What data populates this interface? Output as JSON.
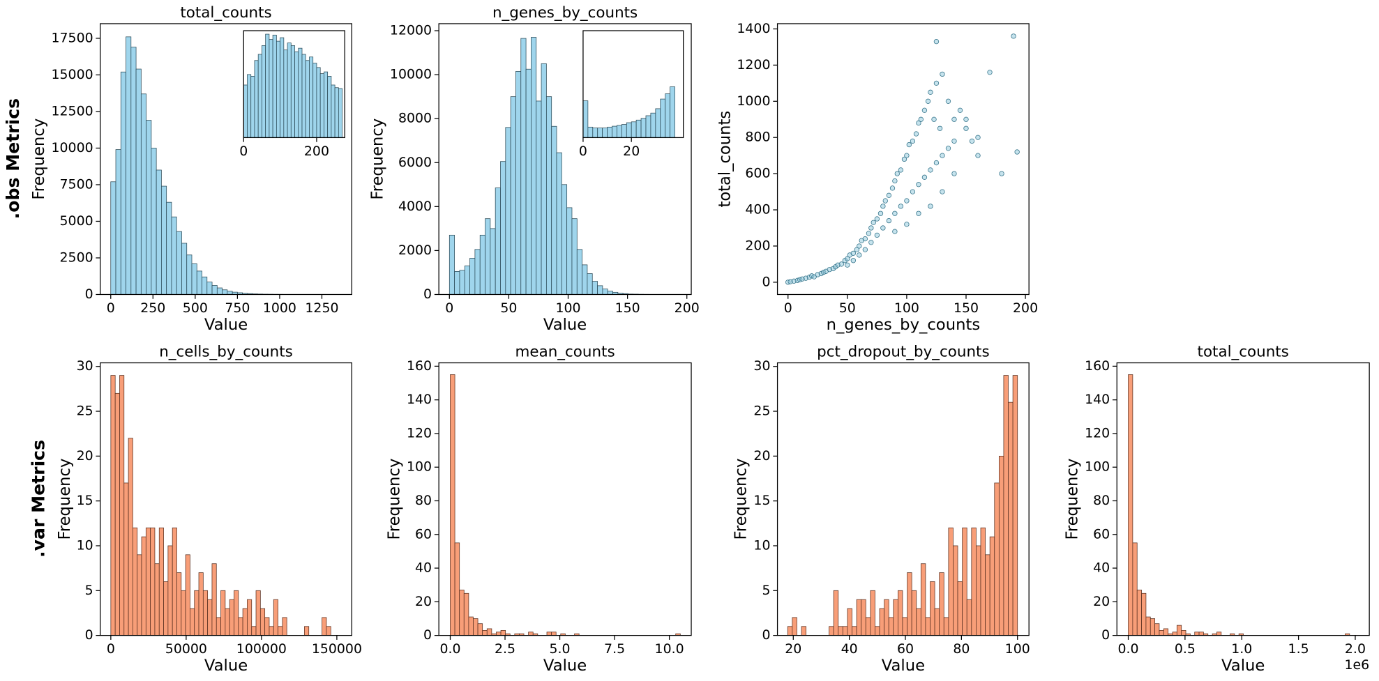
{
  "row_labels": [
    ".obs Metrics",
    ".var Metrics"
  ],
  "chart_data": [
    {
      "type": "histogram",
      "title": "total_counts",
      "xlabel": "Value",
      "ylabel": "Frequency",
      "color": "#9fd5ec",
      "edgecolor": "#2b4a57",
      "bins": [
        0,
        30,
        60,
        90,
        120,
        150,
        180,
        210,
        240,
        270,
        300,
        330,
        360,
        390,
        420,
        450,
        480,
        510,
        540,
        570,
        600,
        630,
        660,
        690,
        720,
        750,
        780,
        810,
        840,
        870,
        900,
        930,
        960,
        990,
        1020,
        1050,
        1080,
        1110,
        1140,
        1170,
        1200,
        1230,
        1260,
        1290,
        1320,
        1350,
        1380
      ],
      "values": [
        7700,
        9900,
        15200,
        17600,
        16900,
        15400,
        13700,
        11900,
        10000,
        8500,
        7400,
        6300,
        5300,
        4300,
        3500,
        2700,
        2100,
        1600,
        1200,
        850,
        620,
        450,
        320,
        220,
        160,
        120,
        80,
        60,
        40,
        30,
        20,
        15,
        10,
        8,
        5,
        4,
        3,
        2,
        2,
        1,
        1,
        1,
        0,
        0,
        0,
        1
      ],
      "xlim": [
        -62,
        1427
      ],
      "ylim": [
        0,
        18500
      ],
      "xticks": [
        0,
        250,
        500,
        750,
        1000,
        1250
      ],
      "yticks": [
        0,
        2500,
        5000,
        7500,
        10000,
        12500,
        15000,
        17500
      ],
      "inset": {
        "type": "histogram",
        "bins": [
          0,
          10,
          20,
          30,
          40,
          50,
          60,
          70,
          80,
          90,
          100,
          110,
          120,
          130,
          140,
          150,
          160,
          170,
          180,
          190,
          200,
          210,
          220,
          230,
          240,
          250,
          260,
          270
        ],
        "values": [
          3000,
          3600,
          3500,
          4400,
          4750,
          5250,
          5900,
          5600,
          5850,
          5500,
          5700,
          5000,
          5400,
          5250,
          4900,
          5100,
          4750,
          4400,
          4600,
          4250,
          4000,
          3650,
          3750,
          3500,
          3000,
          2850,
          2800
        ],
        "xlim": [
          0,
          277
        ],
        "ylim": [
          0,
          6100
        ],
        "xticks": [
          0,
          200
        ]
      }
    },
    {
      "type": "histogram",
      "title": "n_genes_by_counts",
      "xlabel": "Value",
      "ylabel": "Frequency",
      "color": "#9fd5ec",
      "edgecolor": "#2b4a57",
      "bins": [
        0,
        4.3,
        8.6,
        12.9,
        17.2,
        21.5,
        25.8,
        30.1,
        34.4,
        38.7,
        43,
        47.3,
        51.6,
        55.9,
        60.2,
        64.5,
        68.8,
        73.1,
        77.4,
        81.7,
        86,
        90.3,
        94.6,
        98.9,
        103.2,
        107.5,
        111.8,
        116.1,
        120.4,
        124.7,
        129,
        133.3,
        137.6,
        141.9,
        146.2,
        150.5,
        154.8,
        159.1,
        163.4,
        167.7,
        172,
        176.3,
        180.6,
        184.9,
        189.2,
        193.5
      ],
      "values": [
        2700,
        1050,
        1100,
        1300,
        1650,
        2050,
        2700,
        3450,
        3000,
        4850,
        6050,
        7600,
        9000,
        10150,
        11650,
        10250,
        11700,
        8800,
        10500,
        9000,
        7650,
        6450,
        5000,
        3950,
        3450,
        2050,
        1350,
        950,
        600,
        400,
        250,
        150,
        100,
        60,
        40,
        20,
        15,
        8,
        5,
        3,
        2,
        1,
        0,
        1,
        1
      ],
      "xlim": [
        -8.9,
        203.7
      ],
      "ylim": [
        0,
        12320
      ],
      "xticks": [
        0,
        50,
        100,
        150,
        200
      ],
      "yticks": [
        0,
        2000,
        4000,
        6000,
        8000,
        10000,
        12000
      ],
      "inset": {
        "type": "histogram",
        "bins": [
          0,
          2,
          4,
          6,
          8,
          10,
          12,
          14,
          16,
          18,
          20,
          22,
          24,
          26,
          28,
          30,
          32,
          34,
          36,
          38
        ],
        "values": [
          1050,
          300,
          275,
          275,
          275,
          300,
          325,
          350,
          375,
          425,
          450,
          500,
          550,
          625,
          700,
          825,
          1100,
          1250,
          1450
        ],
        "xlim": [
          0,
          41.5
        ],
        "ylim": [
          0,
          3050
        ],
        "xticks": [
          0,
          20
        ]
      }
    },
    {
      "type": "scatter",
      "xlabel": "n_genes_by_counts",
      "ylabel": "total_counts",
      "color": "#8ec7db",
      "edgecolor": "#2f6f86",
      "x": [
        0,
        2,
        5,
        8,
        10,
        12,
        15,
        18,
        20,
        22,
        25,
        28,
        30,
        32,
        35,
        38,
        40,
        42,
        45,
        48,
        50,
        50,
        52,
        55,
        55,
        58,
        60,
        60,
        62,
        65,
        65,
        68,
        70,
        70,
        72,
        75,
        75,
        78,
        80,
        80,
        82,
        85,
        85,
        88,
        90,
        90,
        92,
        95,
        95,
        98,
        100,
        100,
        102,
        105,
        105,
        108,
        110,
        110,
        112,
        115,
        115,
        118,
        120,
        120,
        123,
        125,
        125,
        128,
        130,
        130,
        135,
        135,
        140,
        140,
        145,
        150,
        150,
        155,
        160,
        125,
        170,
        190,
        193,
        180,
        160,
        140,
        130,
        120,
        110,
        100,
        90
      ],
      "values": [
        0,
        3,
        6,
        10,
        14,
        18,
        22,
        28,
        35,
        30,
        42,
        48,
        55,
        60,
        70,
        75,
        85,
        95,
        100,
        120,
        130,
        95,
        150,
        160,
        120,
        180,
        200,
        150,
        230,
        240,
        180,
        270,
        300,
        220,
        330,
        350,
        260,
        380,
        420,
        300,
        450,
        480,
        340,
        520,
        560,
        380,
        600,
        620,
        420,
        680,
        700,
        450,
        760,
        780,
        500,
        820,
        880,
        540,
        900,
        950,
        580,
        1000,
        1050,
        620,
        900,
        1100,
        660,
        850,
        1150,
        700,
        1000,
        740,
        900,
        780,
        950,
        850,
        900,
        780,
        800,
        1330,
        1160,
        1360,
        720,
        600,
        700,
        600,
        500,
        420,
        380,
        320,
        280
      ],
      "xlim": [
        -8.9,
        203
      ],
      "ylim": [
        -67.8,
        1429
      ],
      "xticks": [
        0,
        50,
        100,
        150,
        200
      ],
      "yticks": [
        0,
        200,
        400,
        600,
        800,
        1000,
        1200,
        1400
      ]
    },
    {
      "type": "histogram",
      "title": "n_cells_by_counts",
      "xlabel": "Value",
      "ylabel": "Frequency",
      "color": "#f89e78",
      "edgecolor": "#5a3020",
      "bins": [
        0,
        2920,
        5840,
        8760,
        11680,
        14600,
        17520,
        20440,
        23360,
        26280,
        29200,
        32120,
        35040,
        37960,
        40880,
        43800,
        46720,
        49640,
        52560,
        55480,
        58400,
        61320,
        64240,
        67160,
        70080,
        73000,
        75920,
        78840,
        81760,
        84680,
        87600,
        90520,
        93440,
        96360,
        99280,
        102200,
        105120,
        108040,
        110960,
        113880,
        116800,
        119720,
        122640,
        125560,
        128480,
        131400,
        134320,
        137240,
        140160,
        143080,
        146000
      ],
      "values": [
        29,
        27,
        29,
        17,
        22,
        12,
        9,
        11,
        12,
        12,
        8,
        12,
        6,
        10,
        12,
        7,
        5,
        9,
        3,
        5,
        7,
        5,
        4,
        8,
        2,
        5,
        3,
        4,
        5,
        2,
        3,
        4,
        1,
        5,
        3,
        2,
        1,
        4,
        1,
        2,
        0,
        0,
        0,
        0,
        1,
        0,
        0,
        0,
        2,
        1
      ],
      "xlim": [
        -7004,
        159920
      ],
      "ylim": [
        0,
        30.4
      ],
      "xticks": [
        0,
        50000,
        100000,
        150000
      ],
      "yticks": [
        0,
        5,
        10,
        15,
        20,
        25,
        30
      ]
    },
    {
      "type": "histogram",
      "title": "mean_counts",
      "xlabel": "Value",
      "ylabel": "Frequency",
      "color": "#f89e78",
      "edgecolor": "#5a3020",
      "bins": [
        0,
        0.21,
        0.42,
        0.63,
        0.84,
        1.05,
        1.26,
        1.47,
        1.68,
        1.89,
        2.1,
        2.31,
        2.52,
        2.73,
        2.94,
        3.15,
        3.36,
        3.57,
        3.78,
        3.99,
        4.2,
        4.41,
        4.62,
        4.83,
        5.04,
        5.25,
        5.46,
        5.67,
        5.88,
        6.09,
        6.3,
        6.51,
        6.72,
        6.93,
        7.14,
        7.35,
        7.56,
        7.77,
        7.98,
        8.19,
        8.4,
        8.61,
        8.82,
        9.03,
        9.24,
        9.45,
        9.66,
        9.87,
        10.08,
        10.29,
        10.5
      ],
      "values": [
        155,
        55,
        27,
        25,
        11,
        10,
        7,
        3,
        4,
        1,
        2,
        3,
        1,
        0,
        1,
        1,
        0,
        2,
        1,
        0,
        0,
        2,
        2,
        0,
        1,
        0,
        0,
        1,
        0,
        0,
        0,
        0,
        0,
        0,
        0,
        0,
        0,
        0,
        0,
        0,
        0,
        0,
        0,
        0,
        0,
        0,
        0,
        0,
        0,
        1
      ],
      "xlim": [
        -0.52,
        11.0
      ],
      "ylim": [
        0,
        162
      ],
      "xticks": [
        {
          "value": 0,
          "label": "0.0"
        },
        {
          "value": 2.5,
          "label": "2.5"
        },
        {
          "value": 5,
          "label": "5.0"
        },
        {
          "value": 7.5,
          "label": "7.5"
        },
        {
          "value": 10,
          "label": "10.0"
        }
      ],
      "yticks": [
        0,
        20,
        40,
        60,
        80,
        100,
        120,
        140,
        160
      ]
    },
    {
      "type": "histogram",
      "title": "pct_dropout_by_counts",
      "xlabel": "Value",
      "ylabel": "Frequency",
      "color": "#f89e78",
      "edgecolor": "#5a3020",
      "bins": [
        18,
        19.64,
        21.28,
        22.92,
        24.56,
        26.2,
        27.84,
        29.48,
        31.12,
        32.76,
        34.4,
        36.04,
        37.68,
        39.32,
        40.96,
        42.6,
        44.24,
        45.88,
        47.52,
        49.16,
        50.8,
        52.44,
        54.08,
        55.72,
        57.36,
        59,
        60.64,
        62.28,
        63.92,
        65.56,
        67.2,
        68.84,
        70.48,
        72.12,
        73.76,
        75.4,
        77.04,
        78.68,
        80.32,
        81.96,
        83.6,
        85.24,
        86.88,
        88.52,
        90.16,
        91.8,
        93.44,
        95.08,
        96.72,
        98.36,
        100
      ],
      "values": [
        1,
        2,
        0,
        1,
        0,
        0,
        0,
        0,
        0,
        1,
        5,
        1,
        1,
        3,
        1,
        4,
        4,
        2,
        5,
        1,
        3,
        4,
        2,
        4,
        5,
        2,
        7,
        5,
        3,
        8,
        2,
        6,
        3,
        7,
        2,
        12,
        10,
        6,
        12,
        4,
        12,
        10,
        12,
        9,
        11,
        17,
        20,
        29,
        26,
        29
      ],
      "xlim": [
        14.35,
        104.1
      ],
      "ylim": [
        0,
        30.4
      ],
      "xticks": [
        20,
        40,
        60,
        80,
        100
      ],
      "yticks": [
        0,
        5,
        10,
        15,
        20,
        25,
        30
      ]
    },
    {
      "type": "histogram",
      "title": "total_counts",
      "xlabel": "Value",
      "ylabel": "Frequency",
      "color": "#f89e78",
      "edgecolor": "#5a3020",
      "x_offset_label": "1e6",
      "bins": [
        0,
        39000,
        78000,
        117000,
        156000,
        195000,
        234000,
        273000,
        312000,
        351000,
        390000,
        429000,
        468000,
        507000,
        546000,
        585000,
        624000,
        663000,
        702000,
        741000,
        780000,
        819000,
        858000,
        897000,
        936000,
        975000,
        1014000,
        1053000,
        1092000,
        1131000,
        1170000,
        1209000,
        1248000,
        1287000,
        1326000,
        1365000,
        1404000,
        1443000,
        1482000,
        1521000,
        1560000,
        1599000,
        1638000,
        1677000,
        1716000,
        1755000,
        1794000,
        1833000,
        1872000,
        1911000,
        1950000
      ],
      "values": [
        155,
        55,
        27,
        25,
        11,
        10,
        7,
        3,
        4,
        1,
        2,
        6,
        3,
        1,
        0,
        2,
        2,
        1,
        0,
        1,
        2,
        0,
        0,
        1,
        0,
        1,
        0,
        0,
        0,
        0,
        0,
        0,
        0,
        0,
        0,
        0,
        0,
        0,
        0,
        0,
        0,
        0,
        0,
        0,
        0,
        0,
        0,
        0,
        0,
        1
      ],
      "xlim": [
        -100000,
        2124000
      ],
      "ylim": [
        0,
        162
      ],
      "xticks": [
        {
          "value": 0,
          "label": "0.0"
        },
        {
          "value": 500000,
          "label": "0.5"
        },
        {
          "value": 1000000,
          "label": "1.0"
        },
        {
          "value": 1500000,
          "label": "1.5"
        },
        {
          "value": 2000000,
          "label": "2.0"
        }
      ],
      "yticks": [
        0,
        20,
        40,
        60,
        80,
        100,
        120,
        140,
        160
      ]
    }
  ]
}
